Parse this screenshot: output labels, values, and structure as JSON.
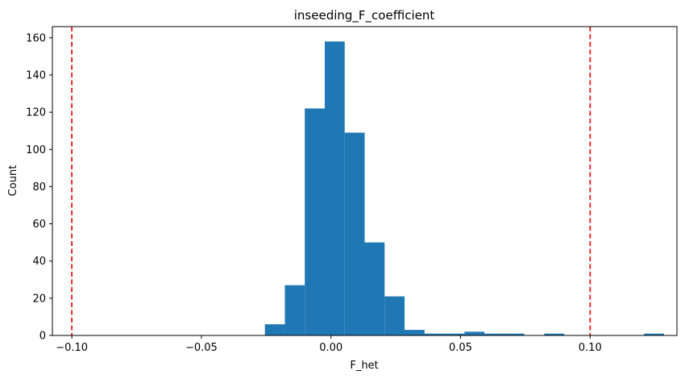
{
  "chart_data": {
    "type": "bar",
    "title": "inseeding_F_coefficient",
    "xlabel": "F_het",
    "ylabel": "Count",
    "xlim": [
      -0.1075,
      0.1335
    ],
    "ylim": [
      0,
      166
    ],
    "xticks": [
      -0.1,
      -0.05,
      0.0,
      0.05,
      0.1
    ],
    "xtick_labels": [
      "−0.10",
      "−0.05",
      "0.00",
      "0.05",
      "0.10"
    ],
    "yticks": [
      0,
      20,
      40,
      60,
      80,
      100,
      120,
      140,
      160
    ],
    "ytick_labels": [
      "0",
      "20",
      "40",
      "60",
      "80",
      "100",
      "120",
      "140",
      "160"
    ],
    "bins": [
      {
        "x0": -0.0255,
        "x1": -0.0178,
        "count": 6
      },
      {
        "x0": -0.0178,
        "x1": -0.0101,
        "count": 27
      },
      {
        "x0": -0.0101,
        "x1": -0.0024,
        "count": 122
      },
      {
        "x0": -0.0024,
        "x1": 0.0053,
        "count": 158
      },
      {
        "x0": 0.0053,
        "x1": 0.013,
        "count": 109
      },
      {
        "x0": 0.013,
        "x1": 0.0207,
        "count": 50
      },
      {
        "x0": 0.0207,
        "x1": 0.0284,
        "count": 21
      },
      {
        "x0": 0.0284,
        "x1": 0.0361,
        "count": 3
      },
      {
        "x0": 0.0361,
        "x1": 0.0438,
        "count": 1
      },
      {
        "x0": 0.0438,
        "x1": 0.0515,
        "count": 1
      },
      {
        "x0": 0.0515,
        "x1": 0.0592,
        "count": 2
      },
      {
        "x0": 0.0592,
        "x1": 0.0669,
        "count": 1
      },
      {
        "x0": 0.0669,
        "x1": 0.0746,
        "count": 1
      },
      {
        "x0": 0.0746,
        "x1": 0.0823,
        "count": 0
      },
      {
        "x0": 0.0823,
        "x1": 0.09,
        "count": 1
      },
      {
        "x0": 0.09,
        "x1": 0.0977,
        "count": 0
      },
      {
        "x0": 0.0977,
        "x1": 0.1054,
        "count": 0
      },
      {
        "x0": 0.1054,
        "x1": 0.1131,
        "count": 0
      },
      {
        "x0": 0.1131,
        "x1": 0.1208,
        "count": 0
      },
      {
        "x0": 0.1208,
        "x1": 0.1285,
        "count": 1
      }
    ],
    "threshold_lines": [
      -0.1,
      0.1
    ],
    "bar_color": "#1f77b4",
    "threshold_color": "#e41a1c",
    "grid": false,
    "legend": "none"
  }
}
